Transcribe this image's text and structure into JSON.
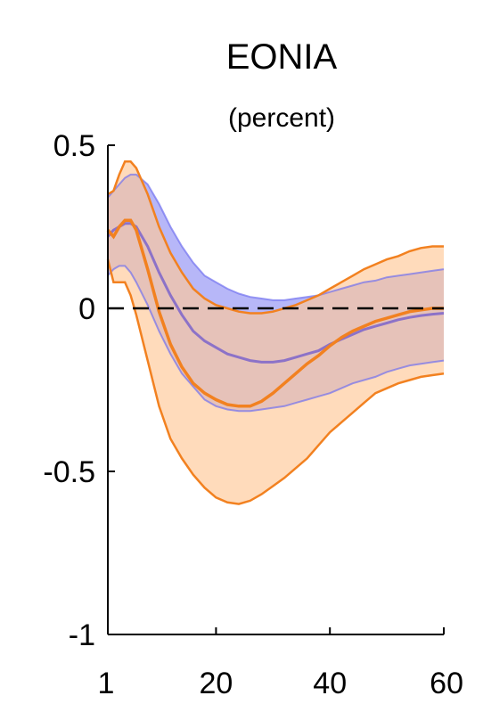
{
  "chart_data": {
    "type": "area",
    "title": "EONIA",
    "subtitle": "(percent)",
    "xlabel": "",
    "ylabel": "",
    "xlim": [
      1,
      60
    ],
    "ylim": [
      -1,
      0.5
    ],
    "xticks": [
      1,
      20,
      40,
      60
    ],
    "xtick_labels": [
      "1",
      "20",
      "40",
      "60"
    ],
    "yticks": [
      -1,
      -0.5,
      0,
      0.5
    ],
    "ytick_labels": [
      "-1",
      "-0.5",
      "0",
      "0.5"
    ],
    "grid": false,
    "legend": "none",
    "reference_line": {
      "y": 0,
      "style": "dashed",
      "color": "#000000"
    },
    "x": [
      1,
      2,
      3,
      4,
      5,
      6,
      8,
      10,
      12,
      14,
      16,
      18,
      20,
      22,
      24,
      26,
      28,
      30,
      32,
      34,
      36,
      38,
      40,
      42,
      44,
      46,
      48,
      50,
      52,
      54,
      56,
      58,
      60
    ],
    "series": [
      {
        "color": "#7070f0",
        "fill": "#7b7bf2",
        "fill_opacity": 0.55,
        "median": [
          0.22,
          0.24,
          0.25,
          0.26,
          0.26,
          0.25,
          0.19,
          0.11,
          0.04,
          -0.02,
          -0.07,
          -0.1,
          -0.12,
          -0.14,
          -0.15,
          -0.16,
          -0.165,
          -0.165,
          -0.16,
          -0.15,
          -0.14,
          -0.13,
          -0.11,
          -0.095,
          -0.08,
          -0.065,
          -0.055,
          -0.045,
          -0.035,
          -0.028,
          -0.022,
          -0.018,
          -0.015
        ],
        "upper": [
          0.34,
          0.36,
          0.38,
          0.4,
          0.41,
          0.41,
          0.38,
          0.32,
          0.25,
          0.19,
          0.14,
          0.1,
          0.08,
          0.06,
          0.045,
          0.035,
          0.03,
          0.025,
          0.025,
          0.03,
          0.035,
          0.04,
          0.05,
          0.06,
          0.07,
          0.08,
          0.085,
          0.095,
          0.1,
          0.105,
          0.11,
          0.115,
          0.12
        ],
        "lower": [
          0.1,
          0.12,
          0.13,
          0.13,
          0.11,
          0.08,
          0.01,
          -0.07,
          -0.14,
          -0.2,
          -0.24,
          -0.28,
          -0.3,
          -0.31,
          -0.315,
          -0.315,
          -0.31,
          -0.305,
          -0.3,
          -0.29,
          -0.28,
          -0.27,
          -0.26,
          -0.245,
          -0.23,
          -0.22,
          -0.21,
          -0.195,
          -0.185,
          -0.175,
          -0.17,
          -0.165,
          -0.16
        ]
      },
      {
        "color": "#f28120",
        "fill": "#ffc896",
        "fill_opacity": 0.65,
        "median": [
          0.24,
          0.22,
          0.25,
          0.27,
          0.27,
          0.24,
          0.12,
          -0.01,
          -0.11,
          -0.18,
          -0.23,
          -0.26,
          -0.28,
          -0.295,
          -0.3,
          -0.3,
          -0.285,
          -0.26,
          -0.23,
          -0.2,
          -0.17,
          -0.145,
          -0.115,
          -0.09,
          -0.07,
          -0.055,
          -0.04,
          -0.03,
          -0.02,
          -0.01,
          -0.005,
          0.0,
          0.0
        ],
        "upper": [
          0.35,
          0.36,
          0.41,
          0.45,
          0.45,
          0.43,
          0.35,
          0.25,
          0.17,
          0.11,
          0.06,
          0.03,
          0.01,
          0.0,
          -0.01,
          -0.015,
          -0.015,
          -0.01,
          0.0,
          0.01,
          0.025,
          0.04,
          0.06,
          0.08,
          0.1,
          0.12,
          0.135,
          0.15,
          0.16,
          0.175,
          0.185,
          0.19,
          0.19
        ],
        "lower": [
          0.15,
          0.08,
          0.08,
          0.08,
          0.04,
          -0.02,
          -0.16,
          -0.3,
          -0.4,
          -0.46,
          -0.51,
          -0.55,
          -0.58,
          -0.595,
          -0.6,
          -0.59,
          -0.57,
          -0.545,
          -0.52,
          -0.49,
          -0.46,
          -0.42,
          -0.38,
          -0.35,
          -0.32,
          -0.29,
          -0.26,
          -0.245,
          -0.23,
          -0.22,
          -0.21,
          -0.205,
          -0.2
        ]
      }
    ]
  }
}
